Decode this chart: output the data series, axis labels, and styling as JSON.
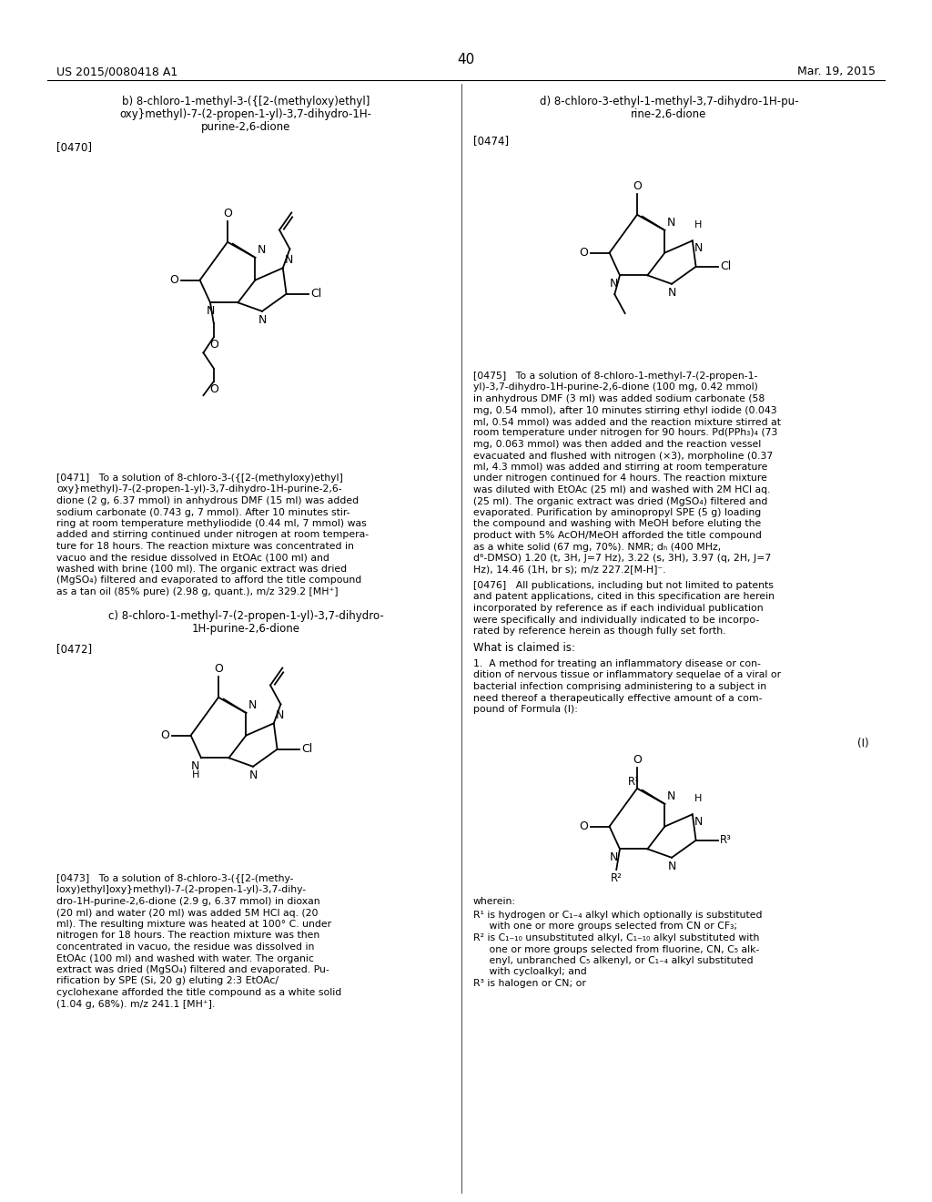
{
  "background_color": "#ffffff",
  "page_number": "40",
  "header_left": "US 2015/0080418 A1",
  "header_right": "Mar. 19, 2015"
}
